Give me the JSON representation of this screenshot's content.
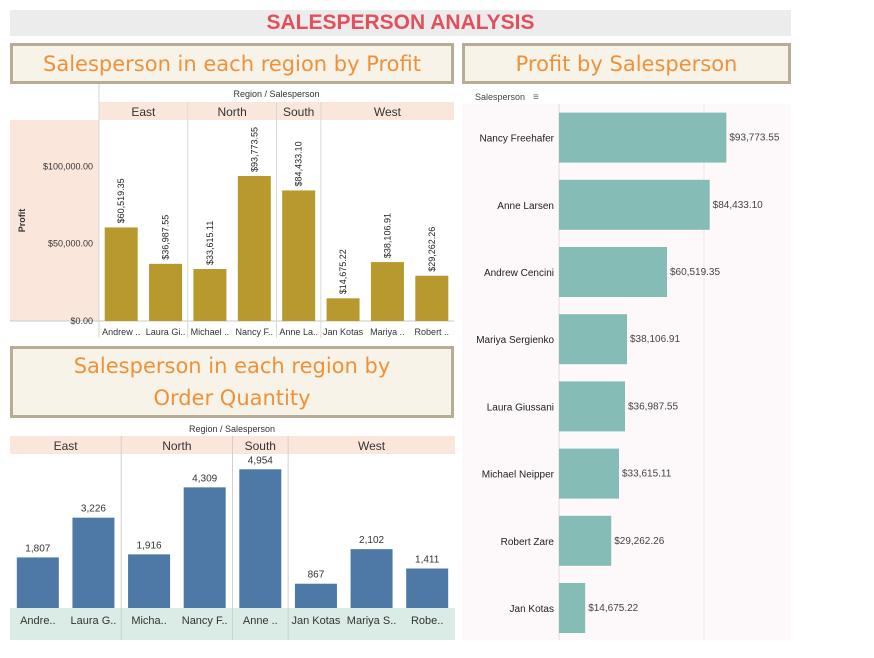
{
  "page_title": "SALESPERSON ANALYSIS",
  "colors": {
    "title": "#e2505e",
    "panel_title": "#f0913a",
    "profit_bar": "#b8992e",
    "quantity_bar": "#4e79a7",
    "hbar": "#86bcb6"
  },
  "chart_data": [
    {
      "type": "bar",
      "title": "Salesperson in each region by Profit",
      "header": "Region / Salesperson",
      "ylabel": "Profit",
      "ylim": [
        0,
        130000
      ],
      "y_ticks": [
        "$0.00",
        "$50,000.00",
        "$100,000.00"
      ],
      "y_tick_values": [
        0,
        50000,
        100000
      ],
      "regions": [
        {
          "name": "East",
          "bars": [
            {
              "label": "Andrew ..",
              "value": 60519.35,
              "value_label": "$60,519.35"
            },
            {
              "label": "Laura Gi..",
              "value": 36987.55,
              "value_label": "$36,987.55"
            }
          ]
        },
        {
          "name": "North",
          "bars": [
            {
              "label": "Michael ..",
              "value": 33615.11,
              "value_label": "$33,615.11"
            },
            {
              "label": "Nancy F..",
              "value": 93773.55,
              "value_label": "$93,773.55"
            }
          ]
        },
        {
          "name": "South",
          "bars": [
            {
              "label": "Anne La..",
              "value": 84433.1,
              "value_label": "$84,433.10"
            }
          ]
        },
        {
          "name": "West",
          "bars": [
            {
              "label": "Jan Kotas",
              "value": 14675.22,
              "value_label": "$14,675.22"
            },
            {
              "label": "Mariya ..",
              "value": 38106.91,
              "value_label": "$38,106.91"
            },
            {
              "label": "Robert ..",
              "value": 29262.26,
              "value_label": "$29,262.26"
            }
          ]
        }
      ]
    },
    {
      "type": "bar",
      "title": "Salesperson in each region by Order Quantity",
      "header": "Region / Salesperson",
      "ylim": [
        0,
        5500
      ],
      "regions": [
        {
          "name": "East",
          "bars": [
            {
              "label": "Andre..",
              "value": 1807,
              "value_label": "1,807"
            },
            {
              "label": "Laura G..",
              "value": 3226,
              "value_label": "3,226"
            }
          ]
        },
        {
          "name": "North",
          "bars": [
            {
              "label": "Micha..",
              "value": 1916,
              "value_label": "1,916"
            },
            {
              "label": "Nancy F..",
              "value": 4309,
              "value_label": "4,309"
            }
          ]
        },
        {
          "name": "South",
          "bars": [
            {
              "label": "Anne ..",
              "value": 4954,
              "value_label": "4,954"
            }
          ]
        },
        {
          "name": "West",
          "bars": [
            {
              "label": "Jan Kotas",
              "value": 867,
              "value_label": "867"
            },
            {
              "label": "Mariya S..",
              "value": 2102,
              "value_label": "2,102"
            },
            {
              "label": "Robe..",
              "value": 1411,
              "value_label": "1,411"
            }
          ]
        }
      ]
    },
    {
      "type": "bar",
      "orientation": "horizontal",
      "title": "Profit by Salesperson",
      "header": "Salesperson",
      "xlim": [
        0,
        130000
      ],
      "categories": [
        "Nancy Freehafer",
        "Anne Larsen",
        "Andrew Cencini",
        "Mariya Sergienko",
        "Laura Giussani",
        "Michael Neipper",
        "Robert Zare",
        "Jan Kotas"
      ],
      "values": [
        93773.55,
        84433.1,
        60519.35,
        38106.91,
        36987.55,
        33615.11,
        29262.26,
        14675.22
      ],
      "value_labels": [
        "$93,773.55",
        "$84,433.10",
        "$60,519.35",
        "$38,106.91",
        "$36,987.55",
        "$33,615.11",
        "$29,262.26",
        "$14,675.22"
      ]
    }
  ]
}
